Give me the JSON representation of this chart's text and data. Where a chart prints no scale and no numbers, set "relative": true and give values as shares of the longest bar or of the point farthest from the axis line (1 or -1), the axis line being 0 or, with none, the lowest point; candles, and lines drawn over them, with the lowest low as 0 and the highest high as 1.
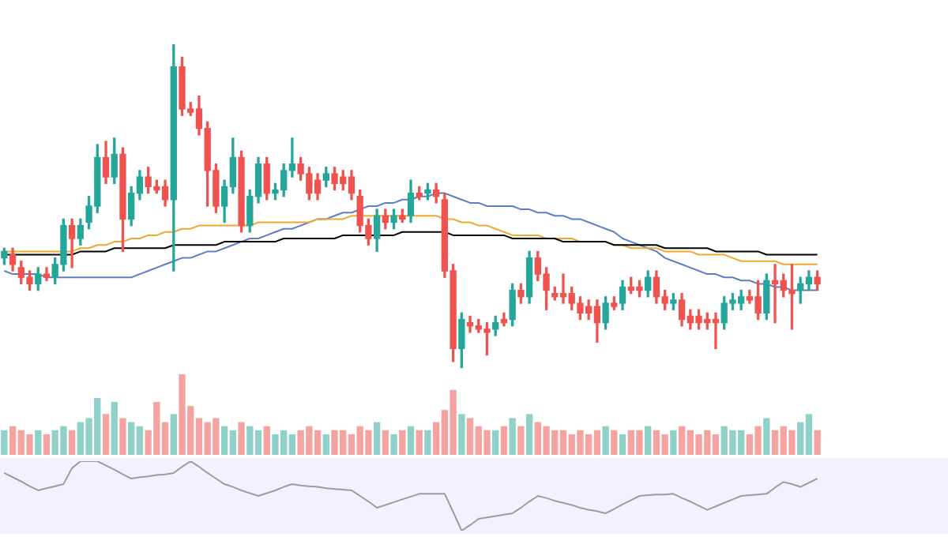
{
  "chart_data": [
    {
      "type": "candlestick",
      "relative": true,
      "tick_labels": false,
      "categories": [
        null,
        null,
        null,
        null,
        null,
        null,
        null,
        null,
        null,
        null,
        null,
        null,
        null,
        null,
        null,
        null,
        null,
        null,
        null,
        null,
        null,
        null,
        null,
        null,
        null,
        null,
        null,
        null,
        null,
        null,
        null,
        null,
        null,
        null,
        null,
        null,
        null,
        null,
        null,
        null,
        null,
        null,
        null,
        null,
        null,
        null,
        null,
        null,
        null,
        null,
        null,
        null,
        null,
        null,
        null,
        null,
        null,
        null,
        null,
        null,
        null,
        null,
        null,
        null,
        null,
        null,
        null,
        null,
        null,
        null,
        null,
        null,
        null,
        null,
        null,
        null,
        null,
        null,
        null,
        null,
        null,
        null,
        null,
        null,
        null,
        null,
        null,
        null,
        null,
        null,
        null,
        null,
        null,
        null,
        null,
        null,
        null
      ],
      "ohlc": [
        [
          0.34,
          0.37,
          0.32,
          0.36
        ],
        [
          0.35,
          0.37,
          0.3,
          0.32
        ],
        [
          0.31,
          0.33,
          0.26,
          0.28
        ],
        [
          0.28,
          0.3,
          0.24,
          0.26
        ],
        [
          0.26,
          0.31,
          0.24,
          0.29
        ],
        [
          0.29,
          0.31,
          0.27,
          0.28
        ],
        [
          0.28,
          0.34,
          0.26,
          0.32
        ],
        [
          0.32,
          0.46,
          0.3,
          0.44
        ],
        [
          0.44,
          0.46,
          0.31,
          0.4
        ],
        [
          0.4,
          0.46,
          0.38,
          0.44
        ],
        [
          0.45,
          0.53,
          0.43,
          0.5
        ],
        [
          0.5,
          0.69,
          0.48,
          0.65
        ],
        [
          0.65,
          0.7,
          0.57,
          0.59
        ],
        [
          0.59,
          0.71,
          0.57,
          0.66
        ],
        [
          0.66,
          0.68,
          0.36,
          0.46
        ],
        [
          0.46,
          0.56,
          0.44,
          0.54
        ],
        [
          0.54,
          0.61,
          0.52,
          0.59
        ],
        [
          0.59,
          0.62,
          0.54,
          0.56
        ],
        [
          0.56,
          0.58,
          0.54,
          0.55
        ],
        [
          0.56,
          0.58,
          0.5,
          0.52
        ],
        [
          0.52,
          1,
          0.3,
          0.93
        ],
        [
          0.93,
          0.96,
          0.78,
          0.8
        ],
        [
          0.8,
          0.82,
          0.78,
          0.79
        ],
        [
          0.8,
          0.84,
          0.72,
          0.74
        ],
        [
          0.74,
          0.76,
          0.5,
          0.61
        ],
        [
          0.61,
          0.63,
          0.48,
          0.5
        ],
        [
          0.5,
          0.58,
          0.45,
          0.56
        ],
        [
          0.56,
          0.71,
          0.54,
          0.65
        ],
        [
          0.65,
          0.67,
          0.42,
          0.44
        ],
        [
          0.44,
          0.55,
          0.42,
          0.53
        ],
        [
          0.53,
          0.65,
          0.51,
          0.63
        ],
        [
          0.63,
          0.65,
          0.52,
          0.54
        ],
        [
          0.54,
          0.57,
          0.52,
          0.55
        ],
        [
          0.55,
          0.63,
          0.53,
          0.61
        ],
        [
          0.61,
          0.71,
          0.59,
          0.63
        ],
        [
          0.63,
          0.65,
          0.58,
          0.6
        ],
        [
          0.6,
          0.62,
          0.52,
          0.54
        ],
        [
          0.58,
          0.6,
          0.52,
          0.54
        ],
        [
          0.58,
          0.62,
          0.56,
          0.6
        ],
        [
          0.6,
          0.62,
          0.55,
          0.57
        ],
        [
          0.59,
          0.61,
          0.55,
          0.57
        ],
        [
          0.59,
          0.61,
          0.52,
          0.54
        ],
        [
          0.53,
          0.55,
          0.42,
          0.44
        ],
        [
          0.44,
          0.46,
          0.38,
          0.4
        ],
        [
          0.4,
          0.49,
          0.36,
          0.47
        ],
        [
          0.47,
          0.49,
          0.43,
          0.45
        ],
        [
          0.45,
          0.49,
          0.43,
          0.47
        ],
        [
          0.47,
          0.49,
          0.45,
          0.46
        ],
        [
          0.47,
          0.58,
          0.45,
          0.54
        ],
        [
          0.54,
          0.56,
          0.52,
          0.53
        ],
        [
          0.54,
          0.57,
          0.52,
          0.55
        ],
        [
          0.55,
          0.57,
          0.51,
          0.53
        ],
        [
          0.52,
          0.54,
          0.28,
          0.3
        ],
        [
          0.3,
          0.32,
          0.02,
          0.06
        ],
        [
          0.06,
          0.17,
          0,
          0.15
        ],
        [
          0.14,
          0.16,
          0.11,
          0.13
        ],
        [
          0.13,
          0.15,
          0.11,
          0.12
        ],
        [
          0.12,
          0.14,
          0.04,
          0.11
        ],
        [
          0.12,
          0.16,
          0.1,
          0.14
        ],
        [
          0.15,
          0.17,
          0.13,
          0.14
        ],
        [
          0.15,
          0.26,
          0.13,
          0.24
        ],
        [
          0.24,
          0.26,
          0.2,
          0.22
        ],
        [
          0.22,
          0.36,
          0.2,
          0.34
        ],
        [
          0.34,
          0.36,
          0.27,
          0.29
        ],
        [
          0.29,
          0.31,
          0.18,
          0.24
        ],
        [
          0.23,
          0.25,
          0.21,
          0.22
        ],
        [
          0.23,
          0.29,
          0.2,
          0.22
        ],
        [
          0.23,
          0.25,
          0.18,
          0.2
        ],
        [
          0.2,
          0.22,
          0.15,
          0.17
        ],
        [
          0.19,
          0.21,
          0.15,
          0.17
        ],
        [
          0.19,
          0.21,
          0.08,
          0.14
        ],
        [
          0.14,
          0.22,
          0.12,
          0.2
        ],
        [
          0.2,
          0.22,
          0.18,
          0.19
        ],
        [
          0.2,
          0.27,
          0.18,
          0.25
        ],
        [
          0.25,
          0.28,
          0.23,
          0.24
        ],
        [
          0.25,
          0.27,
          0.22,
          0.24
        ],
        [
          0.24,
          0.3,
          0.22,
          0.28
        ],
        [
          0.28,
          0.3,
          0.2,
          0.22
        ],
        [
          0.22,
          0.24,
          0.18,
          0.2
        ],
        [
          0.2,
          0.23,
          0.18,
          0.21
        ],
        [
          0.21,
          0.23,
          0.13,
          0.15
        ],
        [
          0.16,
          0.18,
          0.12,
          0.14
        ],
        [
          0.16,
          0.18,
          0.12,
          0.14
        ],
        [
          0.15,
          0.17,
          0.12,
          0.14
        ],
        [
          0.15,
          0.17,
          0.06,
          0.14
        ],
        [
          0.14,
          0.22,
          0.12,
          0.2
        ],
        [
          0.2,
          0.23,
          0.18,
          0.21
        ],
        [
          0.2,
          0.24,
          0.18,
          0.22
        ],
        [
          0.22,
          0.24,
          0.2,
          0.21
        ],
        [
          0.22,
          0.27,
          0.15,
          0.17
        ],
        [
          0.17,
          0.29,
          0.15,
          0.27
        ],
        [
          0.27,
          0.32,
          0.14,
          0.26
        ],
        [
          0.27,
          0.29,
          0.22,
          0.24
        ],
        [
          0.24,
          0.32,
          0.12,
          0.23
        ],
        [
          0.24,
          0.28,
          0.2,
          0.26
        ],
        [
          0.26,
          0.3,
          0.24,
          0.28
        ],
        [
          0.28,
          0.3,
          0.24,
          0.26
        ]
      ],
      "colors": [
        "#26a69a",
        "#ef5350",
        "#ef5350",
        "#ef5350",
        "#26a69a",
        "#ef5350",
        "#26a69a",
        "#26a69a",
        "#ef5350",
        "#26a69a",
        "#26a69a",
        "#26a69a",
        "#ef5350",
        "#26a69a",
        "#ef5350",
        "#26a69a",
        "#26a69a",
        "#ef5350",
        "#ef5350",
        "#ef5350",
        "#26a69a",
        "#ef5350",
        "#ef5350",
        "#ef5350",
        "#ef5350",
        "#ef5350",
        "#26a69a",
        "#26a69a",
        "#ef5350",
        "#26a69a",
        "#26a69a",
        "#ef5350",
        "#26a69a",
        "#26a69a",
        "#26a69a",
        "#ef5350",
        "#ef5350",
        "#ef5350",
        "#26a69a",
        "#ef5350",
        "#ef5350",
        "#ef5350",
        "#ef5350",
        "#ef5350",
        "#26a69a",
        "#ef5350",
        "#26a69a",
        "#ef5350",
        "#26a69a",
        "#ef5350",
        "#26a69a",
        "#ef5350",
        "#ef5350",
        "#ef5350",
        "#26a69a",
        "#ef5350",
        "#ef5350",
        "#ef5350",
        "#26a69a",
        "#ef5350",
        "#26a69a",
        "#ef5350",
        "#26a69a",
        "#ef5350",
        "#ef5350",
        "#ef5350",
        "#ef5350",
        "#ef5350",
        "#ef5350",
        "#ef5350",
        "#ef5350",
        "#26a69a",
        "#ef5350",
        "#26a69a",
        "#ef5350",
        "#ef5350",
        "#26a69a",
        "#ef5350",
        "#ef5350",
        "#26a69a",
        "#ef5350",
        "#ef5350",
        "#ef5350",
        "#ef5350",
        "#ef5350",
        "#26a69a",
        "#26a69a",
        "#26a69a",
        "#ef5350",
        "#ef5350",
        "#26a69a",
        "#ef5350",
        "#ef5350",
        "#ef5350",
        "#26a69a",
        "#26a69a",
        "#ef5350"
      ],
      "series": [
        {
          "type": "line",
          "color": "#000000",
          "values": [
            0.35,
            0.35,
            0.35,
            0.35,
            0.35,
            0.35,
            0.35,
            0.35,
            0.35,
            0.36,
            0.36,
            0.36,
            0.36,
            0.37,
            0.37,
            0.37,
            0.37,
            0.37,
            0.37,
            0.37,
            0.38,
            0.38,
            0.38,
            0.38,
            0.38,
            0.38,
            0.39,
            0.39,
            0.39,
            0.39,
            0.39,
            0.39,
            0.39,
            0.4,
            0.4,
            0.4,
            0.4,
            0.4,
            0.4,
            0.4,
            0.41,
            0.41,
            0.41,
            0.41,
            0.41,
            0.41,
            0.41,
            0.42,
            0.42,
            0.42,
            0.42,
            0.42,
            0.42,
            0.41,
            0.41,
            0.41,
            0.41,
            0.41,
            0.41,
            0.41,
            0.4,
            0.4,
            0.4,
            0.4,
            0.4,
            0.4,
            0.39,
            0.39,
            0.39,
            0.39,
            0.39,
            0.39,
            0.38,
            0.38,
            0.38,
            0.38,
            0.38,
            0.38,
            0.37,
            0.37,
            0.37,
            0.37,
            0.37,
            0.37,
            0.36,
            0.36,
            0.36,
            0.36,
            0.36,
            0.36,
            0.35,
            0.35,
            0.35,
            0.35,
            0.35,
            0.35,
            0.35
          ]
        },
        {
          "type": "line",
          "color": "#f0a830",
          "values": [
            0.36,
            0.36,
            0.36,
            0.36,
            0.36,
            0.36,
            0.36,
            0.36,
            0.36,
            0.37,
            0.37,
            0.38,
            0.38,
            0.39,
            0.39,
            0.4,
            0.4,
            0.41,
            0.41,
            0.42,
            0.42,
            0.43,
            0.43,
            0.44,
            0.44,
            0.44,
            0.44,
            0.44,
            0.44,
            0.44,
            0.45,
            0.45,
            0.45,
            0.45,
            0.45,
            0.45,
            0.45,
            0.46,
            0.46,
            0.46,
            0.46,
            0.47,
            0.47,
            0.47,
            0.47,
            0.47,
            0.47,
            0.47,
            0.47,
            0.47,
            0.47,
            0.47,
            0.46,
            0.46,
            0.45,
            0.45,
            0.44,
            0.44,
            0.43,
            0.42,
            0.41,
            0.41,
            0.41,
            0.41,
            0.4,
            0.4,
            0.4,
            0.4,
            0.39,
            0.39,
            0.39,
            0.39,
            0.38,
            0.38,
            0.37,
            0.37,
            0.37,
            0.37,
            0.36,
            0.36,
            0.36,
            0.36,
            0.35,
            0.35,
            0.35,
            0.35,
            0.34,
            0.33,
            0.33,
            0.33,
            0.33,
            0.33,
            0.32,
            0.32,
            0.32,
            0.32,
            0.32
          ]
        },
        {
          "type": "line",
          "color": "#5b7fc4",
          "values": [
            0.3,
            0.29,
            0.29,
            0.29,
            0.29,
            0.28,
            0.28,
            0.28,
            0.28,
            0.28,
            0.28,
            0.28,
            0.28,
            0.28,
            0.28,
            0.28,
            0.29,
            0.3,
            0.31,
            0.32,
            0.33,
            0.34,
            0.34,
            0.35,
            0.36,
            0.36,
            0.37,
            0.38,
            0.39,
            0.4,
            0.4,
            0.41,
            0.42,
            0.43,
            0.43,
            0.44,
            0.45,
            0.46,
            0.46,
            0.47,
            0.48,
            0.48,
            0.49,
            0.5,
            0.5,
            0.51,
            0.51,
            0.52,
            0.52,
            0.53,
            0.53,
            0.54,
            0.54,
            0.53,
            0.52,
            0.51,
            0.51,
            0.5,
            0.5,
            0.5,
            0.5,
            0.49,
            0.49,
            0.48,
            0.48,
            0.47,
            0.47,
            0.46,
            0.46,
            0.45,
            0.44,
            0.43,
            0.42,
            0.4,
            0.39,
            0.38,
            0.37,
            0.36,
            0.34,
            0.33,
            0.32,
            0.31,
            0.3,
            0.29,
            0.29,
            0.28,
            0.28,
            0.27,
            0.27,
            0.26,
            0.26,
            0.25,
            0.25,
            0.24,
            0.24,
            0.24,
            0.24
          ]
        }
      ]
    },
    {
      "type": "bar",
      "relative": true,
      "tick_labels": false,
      "categories": [
        null,
        null,
        null,
        null,
        null,
        null,
        null,
        null,
        null,
        null,
        null,
        null,
        null,
        null,
        null,
        null,
        null,
        null,
        null,
        null,
        null,
        null,
        null,
        null,
        null,
        null,
        null,
        null,
        null,
        null,
        null,
        null,
        null,
        null,
        null,
        null,
        null,
        null,
        null,
        null,
        null,
        null,
        null,
        null,
        null,
        null,
        null,
        null,
        null,
        null,
        null,
        null,
        null,
        null,
        null,
        null,
        null,
        null,
        null,
        null,
        null,
        null,
        null,
        null,
        null,
        null,
        null,
        null,
        null,
        null,
        null,
        null,
        null,
        null,
        null,
        null,
        null,
        null,
        null,
        null,
        null,
        null,
        null,
        null,
        null,
        null,
        null,
        null,
        null,
        null,
        null,
        null,
        null,
        null,
        null,
        null,
        null
      ],
      "values": [
        0.3,
        0.35,
        0.3,
        0.25,
        0.3,
        0.25,
        0.3,
        0.35,
        0.3,
        0.4,
        0.45,
        0.7,
        0.5,
        0.65,
        0.45,
        0.4,
        0.35,
        0.3,
        0.65,
        0.4,
        0.5,
        1,
        0.6,
        0.45,
        0.4,
        0.45,
        0.35,
        0.3,
        0.4,
        0.35,
        0.3,
        0.35,
        0.25,
        0.3,
        0.25,
        0.3,
        0.35,
        0.3,
        0.25,
        0.3,
        0.3,
        0.25,
        0.35,
        0.3,
        0.4,
        0.3,
        0.25,
        0.3,
        0.35,
        0.3,
        0.3,
        0.4,
        0.55,
        0.8,
        0.5,
        0.45,
        0.35,
        0.3,
        0.3,
        0.35,
        0.45,
        0.35,
        0.5,
        0.4,
        0.35,
        0.3,
        0.3,
        0.25,
        0.3,
        0.25,
        0.3,
        0.35,
        0.3,
        0.25,
        0.3,
        0.3,
        0.35,
        0.3,
        0.25,
        0.3,
        0.35,
        0.3,
        0.25,
        0.3,
        0.25,
        0.35,
        0.3,
        0.3,
        0.25,
        0.35,
        0.45,
        0.3,
        0.35,
        0.3,
        0.4,
        0.5,
        0.3
      ],
      "colors": [
        "#8fd0c8",
        "#f5a3a0",
        "#f5a3a0",
        "#f5a3a0",
        "#8fd0c8",
        "#f5a3a0",
        "#8fd0c8",
        "#8fd0c8",
        "#f5a3a0",
        "#8fd0c8",
        "#8fd0c8",
        "#8fd0c8",
        "#f5a3a0",
        "#8fd0c8",
        "#f5a3a0",
        "#8fd0c8",
        "#8fd0c8",
        "#f5a3a0",
        "#f5a3a0",
        "#f5a3a0",
        "#8fd0c8",
        "#f5a3a0",
        "#f5a3a0",
        "#f5a3a0",
        "#f5a3a0",
        "#f5a3a0",
        "#8fd0c8",
        "#8fd0c8",
        "#f5a3a0",
        "#8fd0c8",
        "#8fd0c8",
        "#f5a3a0",
        "#8fd0c8",
        "#8fd0c8",
        "#8fd0c8",
        "#f5a3a0",
        "#f5a3a0",
        "#f5a3a0",
        "#8fd0c8",
        "#f5a3a0",
        "#f5a3a0",
        "#f5a3a0",
        "#f5a3a0",
        "#f5a3a0",
        "#8fd0c8",
        "#f5a3a0",
        "#8fd0c8",
        "#f5a3a0",
        "#8fd0c8",
        "#f5a3a0",
        "#8fd0c8",
        "#f5a3a0",
        "#f5a3a0",
        "#f5a3a0",
        "#8fd0c8",
        "#f5a3a0",
        "#f5a3a0",
        "#f5a3a0",
        "#8fd0c8",
        "#f5a3a0",
        "#8fd0c8",
        "#f5a3a0",
        "#8fd0c8",
        "#f5a3a0",
        "#f5a3a0",
        "#f5a3a0",
        "#f5a3a0",
        "#f5a3a0",
        "#f5a3a0",
        "#f5a3a0",
        "#f5a3a0",
        "#8fd0c8",
        "#f5a3a0",
        "#8fd0c8",
        "#f5a3a0",
        "#f5a3a0",
        "#8fd0c8",
        "#f5a3a0",
        "#f5a3a0",
        "#8fd0c8",
        "#f5a3a0",
        "#f5a3a0",
        "#f5a3a0",
        "#f5a3a0",
        "#f5a3a0",
        "#8fd0c8",
        "#8fd0c8",
        "#8fd0c8",
        "#f5a3a0",
        "#f5a3a0",
        "#8fd0c8",
        "#f5a3a0",
        "#f5a3a0",
        "#f5a3a0",
        "#8fd0c8",
        "#8fd0c8",
        "#f5a3a0"
      ]
    },
    {
      "type": "line",
      "relative": true,
      "tick_labels": false,
      "color": "#9e98b0",
      "categories": [
        null,
        null,
        null,
        null,
        null,
        null,
        null,
        null,
        null,
        null,
        null,
        null,
        null,
        null,
        null,
        null,
        null,
        null,
        null,
        null,
        null,
        null,
        null,
        null,
        null,
        null,
        null,
        null,
        null,
        null,
        null,
        null,
        null,
        null,
        null,
        null,
        null,
        null,
        null,
        null,
        null,
        null,
        null,
        null,
        null,
        null,
        null,
        null,
        null,
        null,
        null,
        null,
        null,
        null,
        null,
        null,
        null,
        null,
        null,
        null,
        null,
        null,
        null,
        null,
        null,
        null,
        null,
        null,
        null,
        null,
        null,
        null,
        null,
        null,
        null,
        null,
        null,
        null,
        null,
        null,
        null,
        null,
        null,
        null,
        null,
        null,
        null,
        null,
        null,
        null,
        null,
        null,
        null,
        null,
        null,
        null,
        null
      ],
      "values": [
        0.83,
        0.77,
        0.71,
        0.64,
        0.58,
        0.61,
        0.64,
        0.67,
        0.9,
        1,
        1,
        1,
        0.94,
        0.88,
        0.81,
        0.75,
        0.77,
        0.78,
        0.8,
        0.81,
        0.83,
        0.92,
        1,
        0.92,
        0.83,
        0.75,
        0.67,
        0.63,
        0.58,
        0.54,
        0.5,
        0.54,
        0.58,
        0.63,
        0.67,
        0.65,
        0.64,
        0.63,
        0.61,
        0.6,
        0.59,
        0.58,
        0.5,
        0.42,
        0.33,
        0.37,
        0.41,
        0.45,
        0.49,
        0.53,
        0.53,
        0.53,
        0.53,
        0.27,
        0,
        0.08,
        0.17,
        0.19,
        0.21,
        0.23,
        0.25,
        0.33,
        0.42,
        0.5,
        0.47,
        0.43,
        0.4,
        0.37,
        0.33,
        0.3,
        0.28,
        0.25,
        0.31,
        0.38,
        0.44,
        0.5,
        0.51,
        0.52,
        0.52,
        0.53,
        0.47,
        0.42,
        0.36,
        0.3,
        0.35,
        0.4,
        0.45,
        0.5,
        0.51,
        0.52,
        0.53,
        0.62,
        0.7,
        0.67,
        0.63,
        0.69,
        0.75
      ]
    }
  ]
}
